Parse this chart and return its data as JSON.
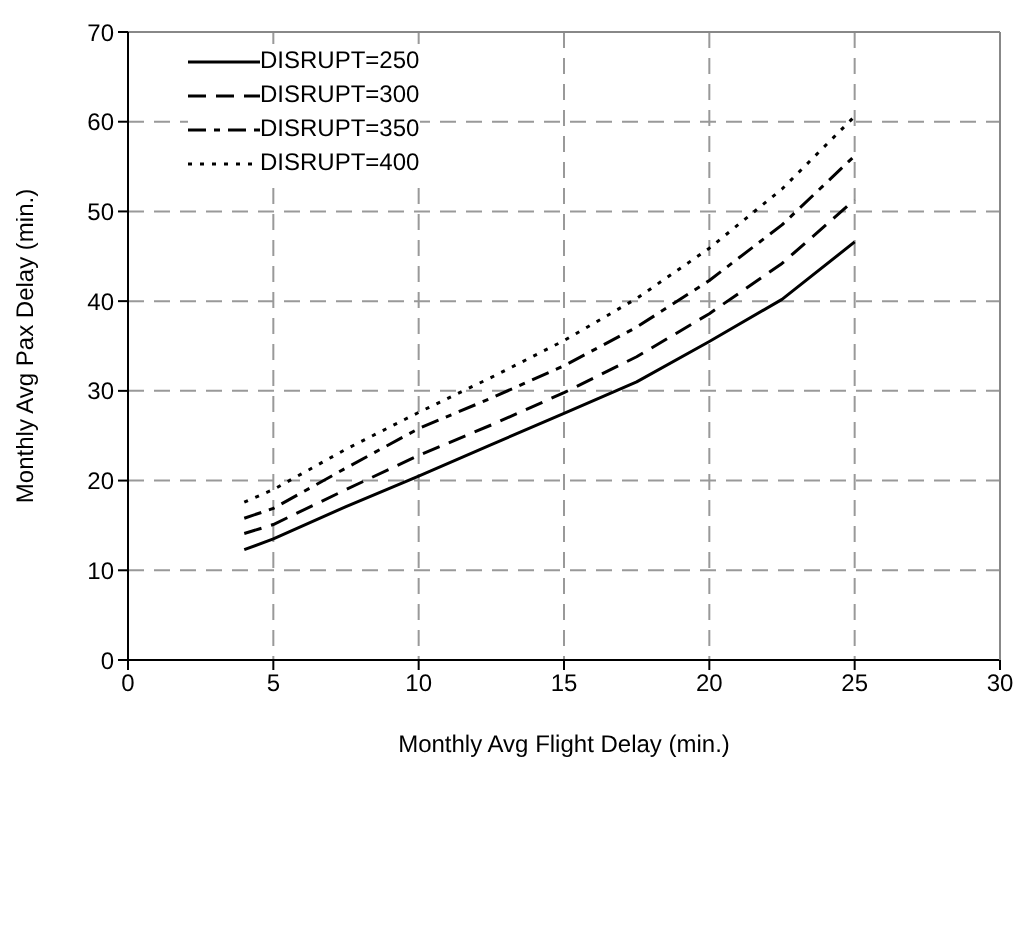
{
  "chart_data": {
    "type": "line",
    "xlabel": "Monthly Avg Flight Delay   (min.)",
    "ylabel": "Monthly Avg Pax Delay   (min.)",
    "x": [
      4,
      5,
      7.5,
      10,
      12.5,
      15,
      17.5,
      20,
      22.5,
      25
    ],
    "series": [
      {
        "name": "DISRUPT=250",
        "color": "#000000",
        "line_style": "solid",
        "values": [
          12.3,
          13.5,
          17.1,
          20.5,
          24.0,
          27.5,
          31.0,
          35.5,
          40.2,
          46.6
        ]
      },
      {
        "name": "DISRUPT=300",
        "color": "#000000",
        "line_style": "dashed",
        "values": [
          14.1,
          15.1,
          19.0,
          22.8,
          26.2,
          29.8,
          33.8,
          38.6,
          44.2,
          51.3
        ]
      },
      {
        "name": "DISRUPT=350",
        "color": "#000000",
        "line_style": "dashdot",
        "values": [
          15.8,
          16.9,
          21.4,
          25.8,
          29.2,
          32.8,
          37.1,
          42.3,
          48.5,
          56.2
        ]
      },
      {
        "name": "DISRUPT=400",
        "color": "#000000",
        "line_style": "dotted",
        "values": [
          17.6,
          19.0,
          23.5,
          27.6,
          31.5,
          35.6,
          40.3,
          45.9,
          52.5,
          60.6
        ]
      }
    ],
    "xlim": [
      0,
      30
    ],
    "xticks": [
      0,
      5,
      10,
      15,
      20,
      25,
      30
    ],
    "ylim": [
      0,
      70
    ],
    "yticks": [
      0,
      10,
      20,
      30,
      40,
      50,
      60,
      70
    ],
    "grid": true,
    "legend": "top left",
    "marker": "none"
  }
}
